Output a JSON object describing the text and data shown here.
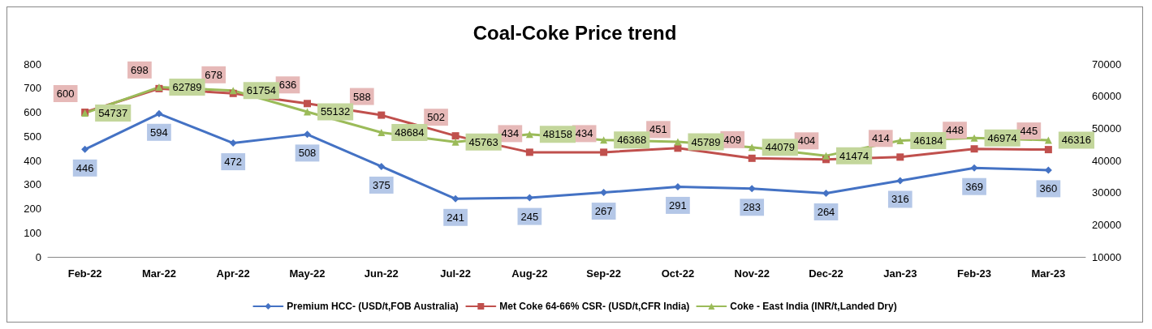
{
  "chart_data": {
    "type": "line",
    "title": "Coal-Coke Price trend",
    "categories": [
      "Feb-22",
      "Mar-22",
      "Apr-22",
      "May-22",
      "Jun-22",
      "Jul-22",
      "Aug-22",
      "Sep-22",
      "Oct-22",
      "Nov-22",
      "Dec-22",
      "Jan-23",
      "Feb-23",
      "Mar-23"
    ],
    "series": [
      {
        "name": "Premium HCC- (USD/t,FOB Australia)",
        "color": "#4472c4",
        "marker": "diamond",
        "values": [
          446,
          594,
          472,
          508,
          375,
          241,
          245,
          267,
          291,
          283,
          264,
          316,
          369,
          360
        ]
      },
      {
        "name": "Met Coke 64-66% CSR- (USD/t,CFR India)",
        "color": "#c0504d",
        "marker": "square",
        "values": [
          600,
          698,
          678,
          636,
          588,
          502,
          434,
          434,
          451,
          409,
          404,
          414,
          448,
          445
        ]
      },
      {
        "name": "Coke - East India (INR/t,Landed Dry)",
        "color": "#9bbb59",
        "marker": "triangle",
        "axis": "y2",
        "values": [
          54737,
          62789,
          61754,
          55132,
          48684,
          45763,
          48158,
          46368,
          45789,
          44079,
          41474,
          46184,
          46974,
          46316
        ]
      }
    ],
    "ylim": [
      0,
      800
    ],
    "yticks": [
      0,
      100,
      200,
      300,
      400,
      500,
      600,
      700,
      800
    ],
    "y2lim": [
      10000,
      70000
    ],
    "y2ticks": [
      10000,
      20000,
      30000,
      40000,
      50000,
      60000,
      70000
    ],
    "data_labels": true,
    "legend": "bottom",
    "grid": false
  }
}
